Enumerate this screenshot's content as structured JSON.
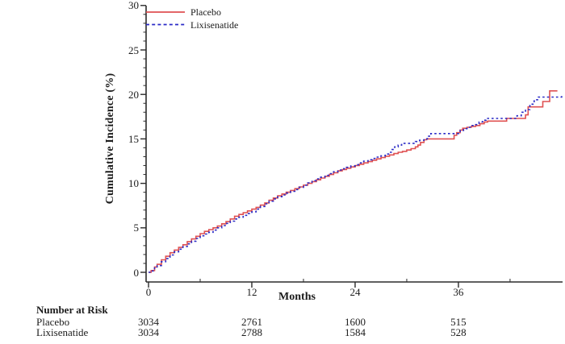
{
  "chart_data": {
    "type": "line",
    "title": "",
    "xlabel": "Months",
    "ylabel": "Cumulative Incidence (%)",
    "xlim": [
      0,
      48.3
    ],
    "ylim": [
      0,
      30
    ],
    "x_ticks": [
      0,
      12,
      24,
      36
    ],
    "x_minor_ticks": [
      6,
      18,
      30,
      42
    ],
    "y_ticks": [
      0,
      5,
      10,
      15,
      20,
      25,
      30
    ],
    "y_minor_step": 1,
    "grid": false,
    "legend_position": "top-left",
    "axis_color": "#2b2b2b",
    "series": [
      {
        "name": "Placebo",
        "color": "#df5152",
        "style": "solid",
        "step": true,
        "points": [
          [
            0,
            0
          ],
          [
            0.3,
            0.2
          ],
          [
            0.7,
            0.6
          ],
          [
            1,
            0.9
          ],
          [
            1.5,
            1.4
          ],
          [
            2,
            1.8
          ],
          [
            2.5,
            2.2
          ],
          [
            3,
            2.5
          ],
          [
            3.5,
            2.8
          ],
          [
            4,
            3.1
          ],
          [
            4.5,
            3.45
          ],
          [
            5,
            3.75
          ],
          [
            5.5,
            4.05
          ],
          [
            6,
            4.35
          ],
          [
            6.5,
            4.6
          ],
          [
            7,
            4.8
          ],
          [
            7.5,
            5.0
          ],
          [
            8,
            5.2
          ],
          [
            8.5,
            5.45
          ],
          [
            9,
            5.7
          ],
          [
            9.5,
            6.0
          ],
          [
            10,
            6.3
          ],
          [
            10.5,
            6.5
          ],
          [
            11,
            6.7
          ],
          [
            11.5,
            6.9
          ],
          [
            12,
            7.1
          ],
          [
            12.5,
            7.3
          ],
          [
            13,
            7.55
          ],
          [
            13.5,
            7.8
          ],
          [
            14,
            8.1
          ],
          [
            14.5,
            8.35
          ],
          [
            15,
            8.6
          ],
          [
            15.5,
            8.8
          ],
          [
            16,
            9.0
          ],
          [
            16.5,
            9.2
          ],
          [
            17,
            9.4
          ],
          [
            17.5,
            9.6
          ],
          [
            18,
            9.8
          ],
          [
            18.5,
            10.0
          ],
          [
            19,
            10.2
          ],
          [
            19.5,
            10.4
          ],
          [
            20,
            10.6
          ],
          [
            20.5,
            10.8
          ],
          [
            21,
            11.0
          ],
          [
            21.5,
            11.2
          ],
          [
            22,
            11.4
          ],
          [
            22.5,
            11.55
          ],
          [
            23,
            11.7
          ],
          [
            23.5,
            11.85
          ],
          [
            24,
            12.0
          ],
          [
            24.5,
            12.15
          ],
          [
            25,
            12.3
          ],
          [
            25.5,
            12.45
          ],
          [
            26,
            12.6
          ],
          [
            26.5,
            12.75
          ],
          [
            27,
            12.9
          ],
          [
            27.5,
            13.05
          ],
          [
            28,
            13.2
          ],
          [
            28.5,
            13.35
          ],
          [
            29,
            13.5
          ],
          [
            29.5,
            13.6
          ],
          [
            30,
            13.75
          ],
          [
            30.5,
            13.9
          ],
          [
            31,
            14.1
          ],
          [
            31.3,
            14.3
          ],
          [
            31.6,
            14.6
          ],
          [
            32,
            14.9
          ],
          [
            32.3,
            15.0
          ],
          [
            35.2,
            15.0
          ],
          [
            35.5,
            15.4
          ],
          [
            35.8,
            15.7
          ],
          [
            36.2,
            16.0
          ],
          [
            36.5,
            16.2
          ],
          [
            37,
            16.3
          ],
          [
            37.5,
            16.4
          ],
          [
            38,
            16.5
          ],
          [
            38.5,
            16.7
          ],
          [
            39,
            16.9
          ],
          [
            39.4,
            17.0
          ],
          [
            41.3,
            17.0
          ],
          [
            41.6,
            17.3
          ],
          [
            43.6,
            17.3
          ],
          [
            43.8,
            17.7
          ],
          [
            44.1,
            18.6
          ],
          [
            45.5,
            18.6
          ],
          [
            45.8,
            19.2
          ],
          [
            46.4,
            19.2
          ],
          [
            46.6,
            20.4
          ],
          [
            47.5,
            20.4
          ]
        ]
      },
      {
        "name": "Lixisenatide",
        "color": "#2a2ac6",
        "style": "dashed",
        "step": true,
        "points": [
          [
            0,
            0
          ],
          [
            0.3,
            0.15
          ],
          [
            0.7,
            0.5
          ],
          [
            1,
            0.75
          ],
          [
            1.5,
            1.2
          ],
          [
            2,
            1.55
          ],
          [
            2.5,
            1.95
          ],
          [
            3,
            2.3
          ],
          [
            3.5,
            2.6
          ],
          [
            4,
            2.9
          ],
          [
            4.5,
            3.2
          ],
          [
            5,
            3.5
          ],
          [
            5.5,
            3.8
          ],
          [
            6,
            4.1
          ],
          [
            6.5,
            4.3
          ],
          [
            7,
            4.5
          ],
          [
            7.5,
            4.75
          ],
          [
            8,
            5.0
          ],
          [
            8.5,
            5.25
          ],
          [
            9,
            5.5
          ],
          [
            9.5,
            5.75
          ],
          [
            10,
            6.0
          ],
          [
            10.5,
            6.2
          ],
          [
            11,
            6.4
          ],
          [
            11.5,
            6.6
          ],
          [
            12,
            6.8
          ],
          [
            12.5,
            7.1
          ],
          [
            13,
            7.4
          ],
          [
            13.5,
            7.7
          ],
          [
            14,
            8.0
          ],
          [
            14.5,
            8.25
          ],
          [
            15,
            8.5
          ],
          [
            15.5,
            8.7
          ],
          [
            16,
            8.9
          ],
          [
            16.5,
            9.1
          ],
          [
            17,
            9.3
          ],
          [
            17.5,
            9.55
          ],
          [
            18,
            9.8
          ],
          [
            18.5,
            10.05
          ],
          [
            19,
            10.3
          ],
          [
            19.5,
            10.5
          ],
          [
            20,
            10.7
          ],
          [
            20.5,
            10.9
          ],
          [
            21,
            11.1
          ],
          [
            21.5,
            11.3
          ],
          [
            22,
            11.5
          ],
          [
            22.5,
            11.65
          ],
          [
            23,
            11.8
          ],
          [
            23.5,
            11.95
          ],
          [
            24,
            12.1
          ],
          [
            24.5,
            12.3
          ],
          [
            25,
            12.5
          ],
          [
            25.5,
            12.65
          ],
          [
            26,
            12.8
          ],
          [
            26.5,
            12.95
          ],
          [
            27,
            13.1
          ],
          [
            27.5,
            13.3
          ],
          [
            28,
            13.5
          ],
          [
            28.3,
            13.8
          ],
          [
            28.6,
            14.1
          ],
          [
            29,
            14.3
          ],
          [
            29.4,
            14.5
          ],
          [
            30.5,
            14.5
          ],
          [
            31,
            14.7
          ],
          [
            31.5,
            14.85
          ],
          [
            32,
            15.0
          ],
          [
            32.4,
            15.3
          ],
          [
            32.8,
            15.6
          ],
          [
            35.8,
            15.6
          ],
          [
            36.2,
            15.95
          ],
          [
            36.6,
            16.15
          ],
          [
            37,
            16.3
          ],
          [
            37.5,
            16.5
          ],
          [
            38,
            16.6
          ],
          [
            38.4,
            16.9
          ],
          [
            38.8,
            17.1
          ],
          [
            39.2,
            17.3
          ],
          [
            42.4,
            17.3
          ],
          [
            42.8,
            17.6
          ],
          [
            43.3,
            18.0
          ],
          [
            43.8,
            18.3
          ],
          [
            44.3,
            18.9
          ],
          [
            44.8,
            19.4
          ],
          [
            45.3,
            19.7
          ],
          [
            47.7,
            19.7
          ],
          [
            48,
            19.9
          ]
        ]
      }
    ]
  },
  "risk_table": {
    "title": "Number at Risk",
    "time_points": [
      0,
      12,
      24,
      36
    ],
    "rows": [
      {
        "label": "Placebo",
        "values": [
          "3034",
          "2761",
          "1600",
          "515"
        ]
      },
      {
        "label": "Lixisenatide",
        "values": [
          "3034",
          "2788",
          "1584",
          "528"
        ]
      }
    ]
  }
}
